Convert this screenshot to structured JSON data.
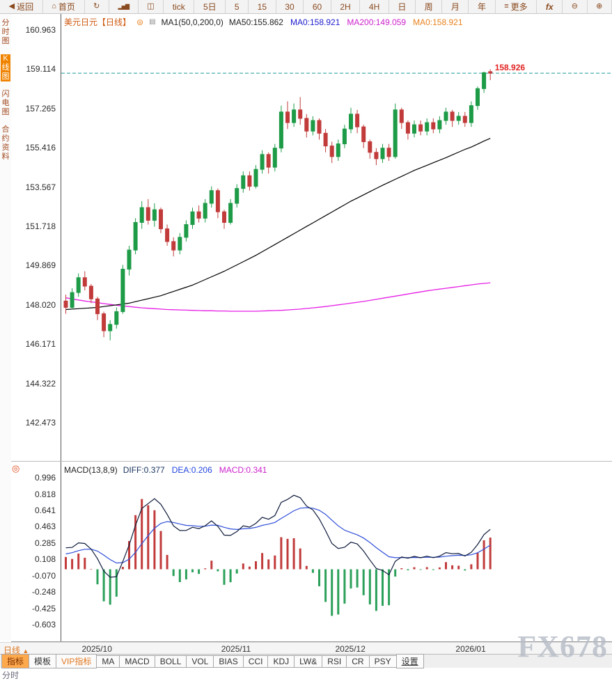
{
  "icons": {
    "back": "◀",
    "home": "⌂",
    "refresh": "↻",
    "bar-chart": "▂▅▇",
    "candlestick": "◫",
    "menu": "≡",
    "zoom-out": "⊖",
    "zoom-in": "⊕",
    "sun": "◎"
  },
  "toolbar": {
    "items": [
      {
        "name": "back-button",
        "icon": "back",
        "label": "返回"
      },
      {
        "name": "home-button",
        "icon": "home",
        "label": "首页"
      },
      {
        "name": "refresh-button",
        "icon": "refresh"
      },
      {
        "name": "bar-chart-view-button",
        "icon": "bar-chart",
        "cls": "blocks"
      },
      {
        "name": "candlestick-view-button",
        "icon": "candlestick"
      },
      {
        "name": "interval-tick-button",
        "label": "tick"
      },
      {
        "name": "interval-5d-button",
        "label": "5日"
      },
      {
        "name": "interval-5m-button",
        "label": "5"
      },
      {
        "name": "interval-15m-button",
        "label": "15"
      },
      {
        "name": "interval-30m-button",
        "label": "30"
      },
      {
        "name": "interval-60m-button",
        "label": "60"
      },
      {
        "name": "interval-2h-button",
        "label": "2H"
      },
      {
        "name": "interval-4h-button",
        "label": "4H"
      },
      {
        "name": "interval-day-button",
        "label": "日"
      },
      {
        "name": "interval-week-button",
        "label": "周"
      },
      {
        "name": "interval-month-button",
        "label": "月"
      },
      {
        "name": "interval-year-button",
        "label": "年"
      },
      {
        "name": "more-button",
        "icon": "menu",
        "label": "更多"
      },
      {
        "name": "fx-tools-button",
        "label": "fx",
        "cls": "fx"
      },
      {
        "name": "zoom-out-button",
        "icon": "zoom-out"
      },
      {
        "name": "zoom-in-button",
        "icon": "zoom-in"
      }
    ]
  },
  "sidebar": {
    "items": [
      {
        "name": "sidebar-item-time-chart",
        "label": "分时图",
        "selected": false
      },
      {
        "name": "sidebar-item-kline-chart",
        "label": "K线图",
        "selected": true
      },
      {
        "name": "sidebar-item-lightning-chart",
        "label": "闪电图",
        "selected": false
      },
      {
        "name": "sidebar-item-contract-info",
        "label": "合约资料",
        "selected": false
      }
    ]
  },
  "main_header": {
    "symbol": "美元日元【日线】",
    "symbol_icon": "⊜",
    "legend_icon": "▤",
    "ma_config": "MA1(50,0,200,0)",
    "items": [
      {
        "text": "MA50:155.862",
        "color": "#222222"
      },
      {
        "text": "MA0:158.921",
        "color": "#1b1bcd"
      },
      {
        "text": "MA200:149.059",
        "color": "#cc22cc"
      },
      {
        "text": "MA0:158.921",
        "color": "#e8821e"
      }
    ]
  },
  "macd_header": {
    "title": "MACD(13,8,9)",
    "items": [
      {
        "text": "DIFF:0.377",
        "color": "#16325c"
      },
      {
        "text": "DEA:0.206",
        "color": "#2244dd"
      },
      {
        "text": "MACD:0.341",
        "color": "#cc22cc"
      }
    ]
  },
  "bottom": {
    "period_label": "日线",
    "period_arrow": "▲",
    "partial": "分时",
    "tabs": [
      {
        "name": "tab-indicator",
        "label": "指标",
        "style": "selected"
      },
      {
        "name": "tab-template",
        "label": "模板",
        "style": "plain"
      },
      {
        "name": "tab-vip-indicator",
        "label": "VIP指标",
        "style": "vip"
      },
      {
        "name": "tab-ma",
        "label": "MA",
        "style": "plain"
      },
      {
        "name": "tab-macd",
        "label": "MACD",
        "style": "plain"
      },
      {
        "name": "tab-boll",
        "label": "BOLL",
        "style": "plain"
      },
      {
        "name": "tab-vol",
        "label": "VOL",
        "style": "plain"
      },
      {
        "name": "tab-bias",
        "label": "BIAS",
        "style": "plain"
      },
      {
        "name": "tab-cci",
        "label": "CCI",
        "style": "plain"
      },
      {
        "name": "tab-kdj",
        "label": "KDJ",
        "style": "plain"
      },
      {
        "name": "tab-lw",
        "label": "LW&",
        "style": "plain"
      },
      {
        "name": "tab-rsi",
        "label": "RSI",
        "style": "plain"
      },
      {
        "name": "tab-cr",
        "label": "CR",
        "style": "plain"
      },
      {
        "name": "tab-psy",
        "label": "PSY",
        "style": "plain"
      },
      {
        "name": "tab-settings",
        "label": "设置",
        "style": "link"
      }
    ]
  },
  "watermark": "FX678",
  "chart_data": {
    "type": "candlestick+macd",
    "title": "美元日元 日线 (USD/JPY Daily)",
    "price_ticks": [
      160.963,
      159.114,
      157.265,
      155.416,
      153.567,
      151.718,
      149.869,
      148.02,
      146.171,
      144.322,
      142.473
    ],
    "macd_ticks": [
      0.996,
      0.818,
      0.641,
      0.463,
      0.285,
      0.108,
      -0.07,
      -0.248,
      -0.425,
      -0.603
    ],
    "months": {
      "labels": [
        "2025/10",
        "2025/11",
        "2025/12",
        "2026/01"
      ],
      "at_index": [
        5,
        27,
        45,
        64
      ]
    },
    "current_price": 158.926,
    "current_price_label": "158.926",
    "macd_params": [
      13,
      8,
      9
    ],
    "macd_seed": {
      "fast": 148.2,
      "slow": 147.9,
      "dea": 0.15
    },
    "colors": {
      "up": "#1d9b47",
      "down": "#c23b3b",
      "ma50": "#000000",
      "ma200": "#e61ee6",
      "diff_line": "#0d1a3a",
      "dea_line": "#2f4ed8",
      "hist_pos": "#c23b3b",
      "hist_neg": "#2ba05a",
      "current_line": "#1d9a9a",
      "current_text": "#e22424"
    },
    "candles": [
      [
        148.2,
        148.5,
        147.6,
        147.9
      ],
      [
        147.9,
        148.8,
        147.8,
        148.6
      ],
      [
        148.6,
        149.5,
        148.4,
        149.3
      ],
      [
        149.3,
        149.6,
        148.7,
        148.9
      ],
      [
        148.9,
        149.0,
        148.1,
        148.3
      ],
      [
        148.3,
        148.4,
        147.3,
        147.6
      ],
      [
        147.6,
        147.7,
        146.5,
        146.8
      ],
      [
        146.8,
        147.3,
        146.35,
        147.1
      ],
      [
        147.1,
        147.9,
        146.9,
        147.7
      ],
      [
        147.7,
        149.9,
        147.6,
        149.7
      ],
      [
        149.7,
        150.8,
        149.4,
        150.6
      ],
      [
        150.6,
        152.1,
        150.4,
        151.9
      ],
      [
        151.9,
        152.9,
        151.6,
        152.6
      ],
      [
        152.6,
        153.0,
        151.8,
        152.0
      ],
      [
        152.0,
        152.8,
        151.7,
        152.5
      ],
      [
        152.5,
        152.6,
        151.4,
        151.6
      ],
      [
        151.6,
        151.8,
        150.8,
        151.0
      ],
      [
        151.0,
        151.2,
        150.3,
        150.6
      ],
      [
        150.6,
        151.4,
        150.4,
        151.2
      ],
      [
        151.2,
        152.0,
        151.0,
        151.8
      ],
      [
        151.8,
        152.6,
        151.6,
        152.4
      ],
      [
        152.4,
        152.7,
        151.9,
        152.1
      ],
      [
        152.1,
        153.0,
        151.9,
        152.8
      ],
      [
        152.8,
        153.6,
        152.6,
        153.4
      ],
      [
        153.4,
        153.5,
        152.1,
        152.4
      ],
      [
        152.4,
        152.5,
        151.6,
        151.9
      ],
      [
        151.9,
        153.0,
        151.8,
        152.8
      ],
      [
        152.8,
        153.7,
        152.6,
        153.5
      ],
      [
        153.5,
        154.3,
        153.3,
        154.1
      ],
      [
        154.1,
        154.3,
        153.4,
        153.6
      ],
      [
        153.6,
        154.6,
        153.5,
        154.4
      ],
      [
        154.4,
        155.3,
        154.2,
        155.1
      ],
      [
        155.1,
        155.2,
        154.2,
        154.5
      ],
      [
        154.5,
        155.6,
        154.3,
        155.4
      ],
      [
        155.4,
        157.4,
        155.2,
        157.1
      ],
      [
        157.1,
        157.6,
        156.3,
        156.6
      ],
      [
        156.6,
        157.5,
        156.4,
        157.2
      ],
      [
        157.2,
        157.8,
        156.5,
        156.8
      ],
      [
        156.8,
        157.0,
        155.9,
        156.2
      ],
      [
        156.2,
        156.9,
        156.0,
        156.7
      ],
      [
        156.7,
        156.8,
        155.8,
        156.1
      ],
      [
        156.1,
        156.3,
        155.2,
        155.5
      ],
      [
        155.5,
        155.7,
        154.7,
        155.0
      ],
      [
        155.0,
        155.8,
        154.8,
        155.6
      ],
      [
        155.6,
        156.5,
        155.4,
        156.3
      ],
      [
        156.3,
        157.3,
        156.1,
        157.0
      ],
      [
        157.0,
        157.2,
        156.1,
        156.4
      ],
      [
        156.4,
        156.5,
        155.4,
        155.7
      ],
      [
        155.7,
        155.8,
        154.9,
        155.2
      ],
      [
        155.2,
        155.4,
        154.6,
        154.9
      ],
      [
        154.9,
        155.6,
        154.7,
        155.4
      ],
      [
        155.4,
        155.6,
        154.8,
        155.0
      ],
      [
        155.0,
        157.5,
        154.9,
        157.2
      ],
      [
        157.2,
        157.3,
        156.3,
        156.6
      ],
      [
        156.6,
        156.7,
        155.8,
        156.1
      ],
      [
        156.1,
        156.7,
        155.9,
        156.5
      ],
      [
        156.5,
        156.7,
        156.0,
        156.2
      ],
      [
        156.2,
        156.8,
        156.0,
        156.6
      ],
      [
        156.6,
        156.8,
        156.1,
        156.3
      ],
      [
        156.3,
        156.9,
        156.1,
        156.7
      ],
      [
        156.7,
        157.3,
        156.5,
        157.1
      ],
      [
        157.1,
        157.2,
        156.4,
        156.7
      ],
      [
        156.7,
        157.1,
        156.5,
        156.9
      ],
      [
        156.9,
        157.1,
        156.4,
        156.6
      ],
      [
        156.6,
        157.6,
        156.4,
        157.4
      ],
      [
        157.4,
        158.3,
        157.2,
        158.2
      ],
      [
        158.2,
        159.0,
        158.0,
        158.95
      ],
      [
        159.0,
        159.11,
        158.6,
        158.926
      ]
    ],
    "ma50": [
      147.8,
      147.82,
      147.84,
      147.86,
      147.88,
      147.9,
      147.94,
      147.98,
      148.02,
      148.06,
      148.1,
      148.17,
      148.24,
      148.31,
      148.38,
      148.45,
      148.55,
      148.65,
      148.75,
      148.85,
      148.95,
      149.08,
      149.21,
      149.34,
      149.47,
      149.6,
      149.75,
      149.9,
      150.05,
      150.2,
      150.35,
      150.52,
      150.69,
      150.86,
      151.03,
      151.2,
      151.37,
      151.54,
      151.71,
      151.88,
      152.05,
      152.22,
      152.39,
      152.56,
      152.73,
      152.9,
      153.05,
      153.2,
      153.35,
      153.5,
      153.65,
      153.79,
      153.93,
      154.07,
      154.21,
      154.35,
      154.47,
      154.59,
      154.71,
      154.83,
      154.95,
      155.08,
      155.21,
      155.34,
      155.45,
      155.59,
      155.73,
      155.86
    ],
    "ma200": [
      148.35,
      148.3,
      148.25,
      148.2,
      148.16,
      148.12,
      148.08,
      148.04,
      148.0,
      147.97,
      147.94,
      147.91,
      147.88,
      147.86,
      147.84,
      147.82,
      147.8,
      147.79,
      147.78,
      147.77,
      147.76,
      147.75,
      147.74,
      147.74,
      147.73,
      147.73,
      147.72,
      147.72,
      147.72,
      147.72,
      147.72,
      147.73,
      147.74,
      147.75,
      147.76,
      147.78,
      147.8,
      147.82,
      147.85,
      147.88,
      147.91,
      147.94,
      147.98,
      148.02,
      148.06,
      148.1,
      148.14,
      148.18,
      148.23,
      148.28,
      148.33,
      148.38,
      148.43,
      148.48,
      148.53,
      148.58,
      148.63,
      148.68,
      148.72,
      148.76,
      148.8,
      148.84,
      148.88,
      148.92,
      148.96,
      149.0,
      149.03,
      149.06
    ]
  }
}
